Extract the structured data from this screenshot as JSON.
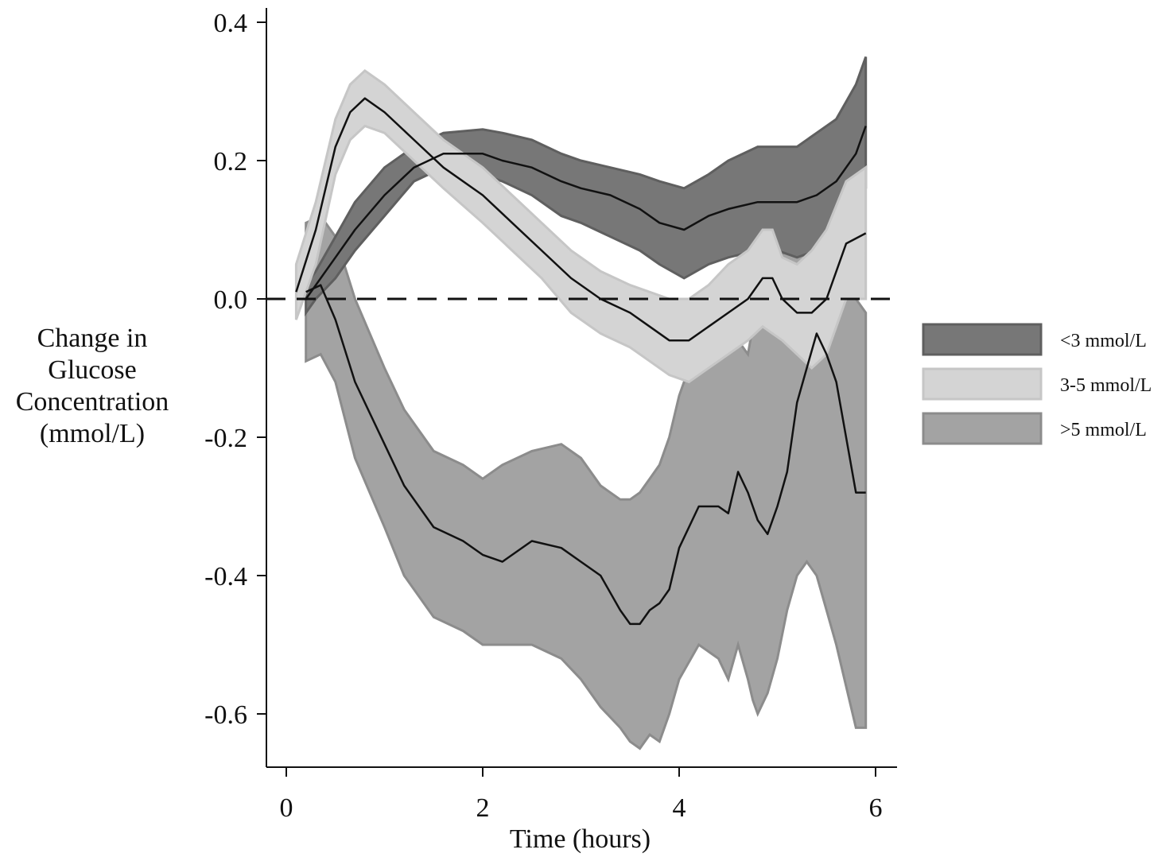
{
  "chart_data": {
    "type": "area",
    "title": "",
    "xlabel": "Time (hours)",
    "ylabel_lines": [
      "Change in",
      "Glucose",
      "Concentration",
      "(mmol/L)"
    ],
    "xlim": [
      -0.2,
      6.2
    ],
    "ylim": [
      -0.68,
      0.43
    ],
    "xticks": [
      0,
      2,
      4,
      6
    ],
    "xtick_labels": [
      "0",
      "2",
      "4",
      "6"
    ],
    "yticks": [
      0.4,
      0.2,
      0.0,
      -0.2,
      -0.4,
      -0.6
    ],
    "ytick_labels": [
      "0.4",
      "0.2",
      "0.0",
      "-0.2",
      "-0.4",
      "-0.6"
    ],
    "reference_line": {
      "y": 0.0,
      "style": "dashed"
    },
    "grid": false,
    "legend_position": "right",
    "series": [
      {
        "name": "<3 mmol/L",
        "fill": "#777777",
        "x": [
          0.2,
          0.3,
          0.5,
          0.7,
          1.0,
          1.3,
          1.6,
          2.0,
          2.2,
          2.5,
          2.8,
          3.0,
          3.3,
          3.6,
          3.8,
          4.05,
          4.3,
          4.5,
          4.8,
          5.0,
          5.2,
          5.4,
          5.6,
          5.8,
          5.9
        ],
        "mean": [
          0.0,
          0.02,
          0.06,
          0.1,
          0.15,
          0.19,
          0.21,
          0.21,
          0.2,
          0.19,
          0.17,
          0.16,
          0.15,
          0.13,
          0.11,
          0.1,
          0.12,
          0.13,
          0.14,
          0.14,
          0.14,
          0.15,
          0.17,
          0.21,
          0.25
        ],
        "lower": [
          -0.02,
          0.0,
          0.03,
          0.07,
          0.12,
          0.17,
          0.19,
          0.18,
          0.17,
          0.15,
          0.12,
          0.11,
          0.09,
          0.07,
          0.05,
          0.03,
          0.05,
          0.06,
          0.07,
          0.07,
          0.06,
          0.07,
          0.1,
          0.14,
          0.16
        ],
        "upper": [
          0.02,
          0.04,
          0.09,
          0.14,
          0.19,
          0.22,
          0.24,
          0.245,
          0.24,
          0.23,
          0.21,
          0.2,
          0.19,
          0.18,
          0.17,
          0.16,
          0.18,
          0.2,
          0.22,
          0.22,
          0.22,
          0.24,
          0.26,
          0.31,
          0.35
        ]
      },
      {
        "name": "3-5 mmol/L",
        "fill": "#d4d4d4",
        "x": [
          0.1,
          0.3,
          0.5,
          0.65,
          0.8,
          1.0,
          1.3,
          1.6,
          2.0,
          2.3,
          2.6,
          2.9,
          3.2,
          3.5,
          3.7,
          3.9,
          4.1,
          4.3,
          4.5,
          4.7,
          4.85,
          4.95,
          5.05,
          5.2,
          5.35,
          5.5,
          5.7,
          5.9
        ],
        "mean": [
          0.01,
          0.1,
          0.22,
          0.27,
          0.29,
          0.27,
          0.23,
          0.19,
          0.15,
          0.11,
          0.07,
          0.03,
          0.0,
          -0.02,
          -0.04,
          -0.06,
          -0.06,
          -0.04,
          -0.02,
          0.0,
          0.03,
          0.03,
          0.0,
          -0.02,
          -0.02,
          0.0,
          0.08,
          0.095
        ],
        "lower": [
          -0.03,
          0.05,
          0.18,
          0.23,
          0.25,
          0.24,
          0.2,
          0.16,
          0.11,
          0.07,
          0.03,
          -0.02,
          -0.05,
          -0.07,
          -0.09,
          -0.11,
          -0.12,
          -0.1,
          -0.08,
          -0.06,
          -0.04,
          -0.05,
          -0.06,
          -0.08,
          -0.1,
          -0.08,
          0.0,
          0.0
        ],
        "upper": [
          0.05,
          0.14,
          0.26,
          0.31,
          0.33,
          0.31,
          0.27,
          0.23,
          0.19,
          0.15,
          0.11,
          0.07,
          0.04,
          0.02,
          0.01,
          0.0,
          0.0,
          0.02,
          0.05,
          0.07,
          0.1,
          0.1,
          0.06,
          0.05,
          0.07,
          0.1,
          0.17,
          0.19
        ]
      },
      {
        "name": ">5 mmol/L",
        "fill": "#a3a3a3",
        "x": [
          0.2,
          0.35,
          0.5,
          0.7,
          1.0,
          1.2,
          1.5,
          1.8,
          2.0,
          2.2,
          2.5,
          2.8,
          3.0,
          3.2,
          3.4,
          3.5,
          3.6,
          3.7,
          3.8,
          3.9,
          4.0,
          4.2,
          4.4,
          4.5,
          4.6,
          4.7,
          4.75,
          4.8,
          4.9,
          5.0,
          5.1,
          5.2,
          5.3,
          5.4,
          5.5,
          5.6,
          5.8,
          5.9
        ],
        "mean": [
          0.01,
          0.02,
          -0.03,
          -0.12,
          -0.21,
          -0.27,
          -0.33,
          -0.35,
          -0.37,
          -0.38,
          -0.35,
          -0.36,
          -0.38,
          -0.4,
          -0.45,
          -0.47,
          -0.47,
          -0.45,
          -0.44,
          -0.42,
          -0.36,
          -0.3,
          -0.3,
          -0.31,
          -0.25,
          -0.28,
          -0.3,
          -0.32,
          -0.34,
          -0.3,
          -0.25,
          -0.15,
          -0.1,
          -0.05,
          -0.08,
          -0.12,
          -0.28,
          -0.28
        ],
        "lower": [
          -0.09,
          -0.08,
          -0.12,
          -0.23,
          -0.33,
          -0.4,
          -0.46,
          -0.48,
          -0.5,
          -0.5,
          -0.5,
          -0.52,
          -0.55,
          -0.59,
          -0.62,
          -0.64,
          -0.65,
          -0.63,
          -0.64,
          -0.6,
          -0.55,
          -0.5,
          -0.52,
          -0.55,
          -0.5,
          -0.55,
          -0.58,
          -0.6,
          -0.57,
          -0.52,
          -0.45,
          -0.4,
          -0.38,
          -0.4,
          -0.45,
          -0.5,
          -0.62,
          -0.62
        ],
        "upper": [
          0.11,
          0.12,
          0.09,
          0.0,
          -0.1,
          -0.16,
          -0.22,
          -0.24,
          -0.26,
          -0.24,
          -0.22,
          -0.21,
          -0.23,
          -0.27,
          -0.29,
          -0.29,
          -0.28,
          -0.26,
          -0.24,
          -0.2,
          -0.14,
          -0.06,
          0.0,
          -0.04,
          -0.06,
          -0.08,
          -0.04,
          0.0,
          0.05,
          0.05,
          0.08,
          0.15,
          0.22,
          0.2,
          0.14,
          0.08,
          0.0,
          -0.02
        ]
      }
    ]
  }
}
